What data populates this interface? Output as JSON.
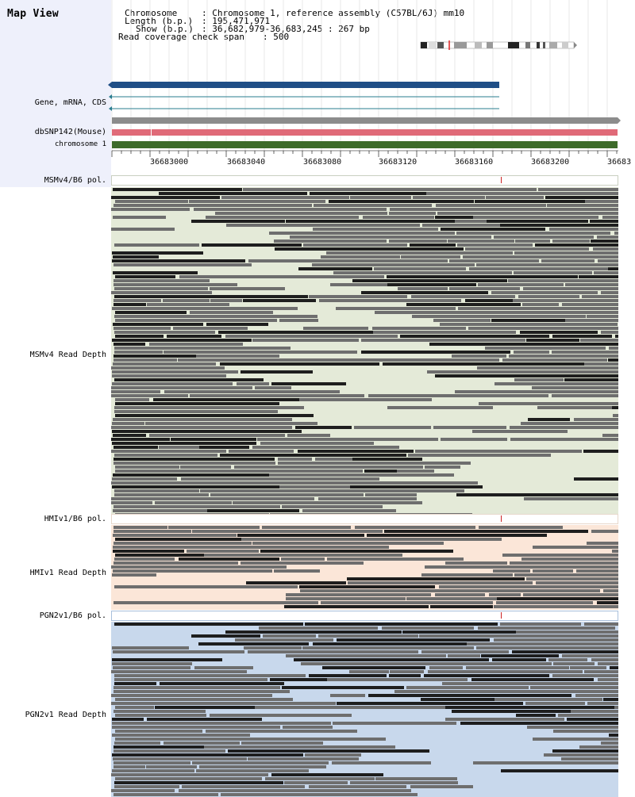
{
  "header": {
    "title": "Map View",
    "chromosome_key": "Chromosome",
    "chromosome_value": ": Chromosome 1, reference assembly (C57BL/6J) mm10",
    "length_key": "Length (b.p.)",
    "length_value": ": 195,471,971",
    "show_key": "Show (b.p.)",
    "show_value": ": 36,682,979-36,683,245 : 267 bp",
    "coverage_key": "Read coverage check span",
    "coverage_value": ": 500"
  },
  "tracks": {
    "gene": "Gene, mRNA, CDS",
    "snp": "dbSNP142(Mouse)",
    "chromosome": "chromosome 1"
  },
  "ruler": {
    "ticks": [
      "36683000",
      "36683040",
      "36683080",
      "36683120",
      "36683160",
      "36683200",
      "36683"
    ]
  },
  "samples": [
    {
      "pol_label": "MSMv4/B6 pol.",
      "depth_label": "MSMv4 Read Depth"
    },
    {
      "pol_label": "HMIv1/B6 pol.",
      "depth_label": "HMIv1 Read Depth"
    },
    {
      "pol_label": "PGN2v1/B6 pol.",
      "depth_label": "PGN2v1 Read Depth"
    }
  ],
  "colors": {
    "gene_bar": "#1f4e86",
    "snp_bar": "#e06a78",
    "chromosome_bar": "#3d6b2a",
    "read_gray": "#6e6e6e",
    "read_dark": "#1e1e1e",
    "msm_bg": "#e4ead8",
    "hmi_bg": "#fbe6d8",
    "pgn_bg": "#c8d8ec"
  }
}
